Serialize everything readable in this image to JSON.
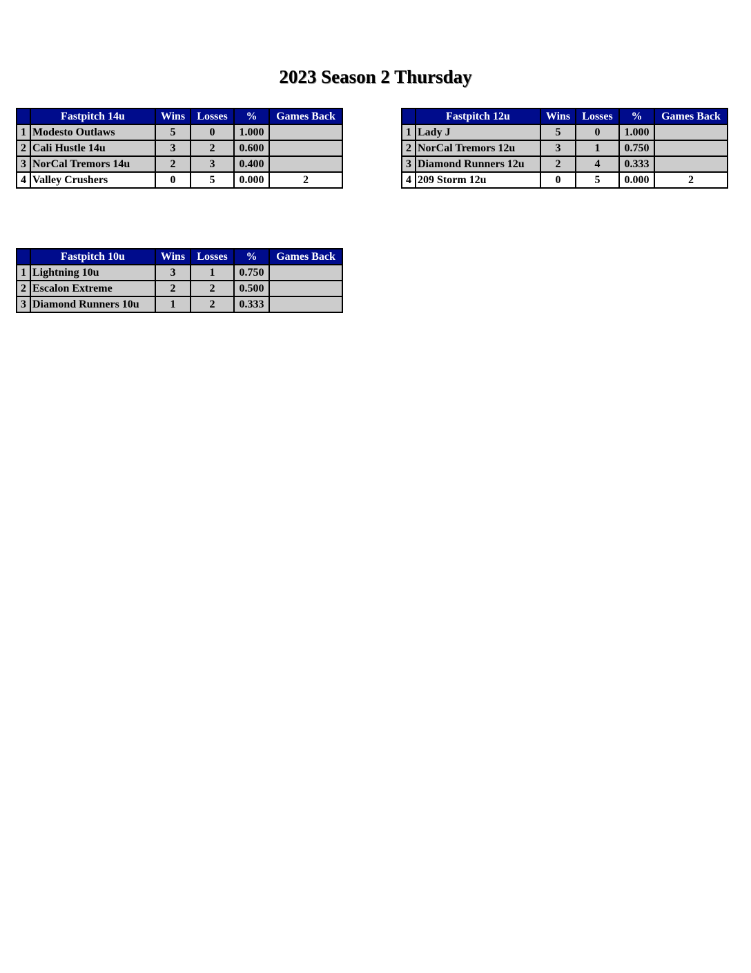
{
  "title": "2023 Season 2 Thursday",
  "columns": {
    "wins": "Wins",
    "losses": "Losses",
    "pct": "%",
    "games_back": "Games Back"
  },
  "colors": {
    "header_bg": "#000c8c",
    "row_bg": "#cccccc",
    "last_row_bg": "#ffffff"
  },
  "tables": [
    {
      "division": "Fastpitch 14u",
      "rows": [
        {
          "rank": "1",
          "team": "Modesto Outlaws",
          "wins": "5",
          "losses": "0",
          "pct": "1.000",
          "gb": ""
        },
        {
          "rank": "2",
          "team": "Cali Hustle 14u",
          "wins": "3",
          "losses": "2",
          "pct": "0.600",
          "gb": ""
        },
        {
          "rank": "3",
          "team": "NorCal Tremors 14u",
          "wins": "2",
          "losses": "3",
          "pct": "0.400",
          "gb": ""
        },
        {
          "rank": "4",
          "team": "Valley Crushers",
          "wins": "0",
          "losses": "5",
          "pct": "0.000",
          "gb": "2"
        }
      ]
    },
    {
      "division": "Fastpitch 12u",
      "rows": [
        {
          "rank": "1",
          "team": "Lady J",
          "wins": "5",
          "losses": "0",
          "pct": "1.000",
          "gb": ""
        },
        {
          "rank": "2",
          "team": "NorCal Tremors 12u",
          "wins": "3",
          "losses": "1",
          "pct": "0.750",
          "gb": ""
        },
        {
          "rank": "3",
          "team": "Diamond Runners 12u",
          "wins": "2",
          "losses": "4",
          "pct": "0.333",
          "gb": ""
        },
        {
          "rank": "4",
          "team": "209 Storm 12u",
          "wins": "0",
          "losses": "5",
          "pct": "0.000",
          "gb": "2"
        }
      ]
    },
    {
      "division": "Fastpitch 10u",
      "rows": [
        {
          "rank": "1",
          "team": "Lightning 10u",
          "wins": "3",
          "losses": "1",
          "pct": "0.750",
          "gb": ""
        },
        {
          "rank": "2",
          "team": "Escalon Extreme",
          "wins": "2",
          "losses": "2",
          "pct": "0.500",
          "gb": ""
        },
        {
          "rank": "3",
          "team": "Diamond Runners 10u",
          "wins": "1",
          "losses": "2",
          "pct": "0.333",
          "gb": ""
        }
      ]
    }
  ]
}
